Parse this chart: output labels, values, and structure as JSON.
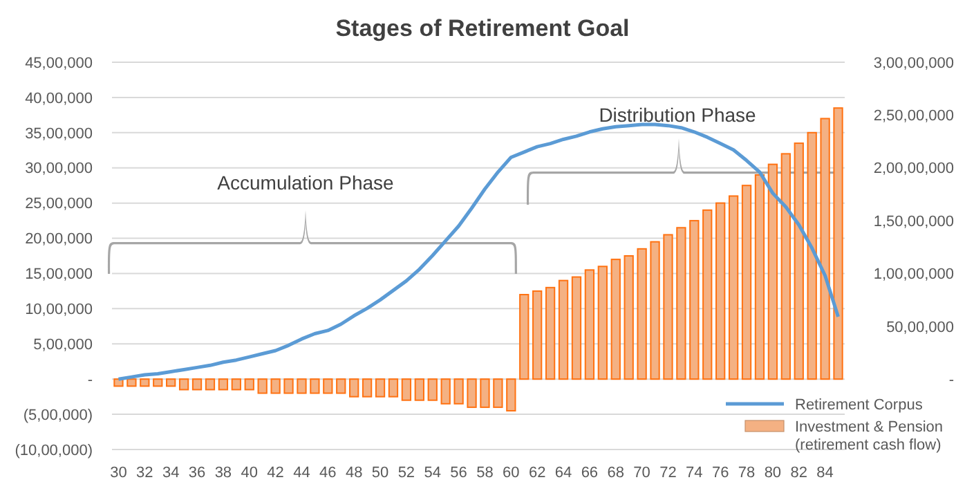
{
  "chart_data": {
    "type": "bar",
    "title": "Stages of Retirement Goal",
    "categories": [
      "30",
      null,
      "32",
      null,
      "34",
      null,
      "36",
      null,
      "38",
      null,
      "40",
      null,
      "42",
      null,
      "44",
      null,
      "46",
      null,
      "48",
      null,
      "50",
      null,
      "52",
      null,
      "54",
      null,
      "56",
      null,
      "58",
      null,
      "60",
      null,
      "62",
      null,
      "64",
      null,
      "66",
      null,
      "68",
      null,
      "70",
      null,
      "72",
      null,
      "74",
      null,
      "76",
      null,
      "78",
      null,
      "80",
      null,
      "82",
      null,
      "84",
      null
    ],
    "series": [
      {
        "name": "Retirement Corpus",
        "type": "line",
        "axis": "y2",
        "color": "#5b9bd5",
        "values": [
          0,
          200000,
          400000,
          500000,
          700000,
          900000,
          1100000,
          1300000,
          1600000,
          1800000,
          2100000,
          2400000,
          2700000,
          3200000,
          3800000,
          4300000,
          4600000,
          5200000,
          6000000,
          6700000,
          7500000,
          8400000,
          9300000,
          10400000,
          11700000,
          13100000,
          14500000,
          16200000,
          18000000,
          19600000,
          21000000,
          21500000,
          22000000,
          22300000,
          22700000,
          23000000,
          23400000,
          23700000,
          23900000,
          24000000,
          24100000,
          24100000,
          24000000,
          23800000,
          23400000,
          22900000,
          22300000,
          21700000,
          20700000,
          19600000,
          17600000,
          16300000,
          14600000,
          12400000,
          9800000,
          5900000
        ]
      },
      {
        "name": "Investment & Pension (retirement cash flow)",
        "color": "#f4b183",
        "values": [
          -100000,
          -100000,
          -100000,
          -100000,
          -100000,
          -150000,
          -150000,
          -150000,
          -150000,
          -150000,
          -150000,
          -200000,
          -200000,
          -200000,
          -200000,
          -200000,
          -200000,
          -200000,
          -250000,
          -250000,
          -250000,
          -250000,
          -300000,
          -300000,
          -300000,
          -350000,
          -350000,
          -400000,
          -400000,
          -400000,
          -450000,
          1200000,
          1250000,
          1300000,
          1400000,
          1450000,
          1550000,
          1600000,
          1700000,
          1750000,
          1850000,
          1950000,
          2050000,
          2150000,
          2250000,
          2400000,
          2500000,
          2600000,
          2750000,
          2900000,
          3050000,
          3200000,
          3350000,
          3500000,
          3700000,
          3850000
        ]
      }
    ],
    "ylim": [
      -1000000,
      4500000
    ],
    "yticks": [
      {
        "value": -1000000,
        "label": "(10,00,000)"
      },
      {
        "value": -500000,
        "label": "(5,00,000)"
      },
      {
        "value": 0,
        "label": "-"
      },
      {
        "value": 500000,
        "label": "5,00,000"
      },
      {
        "value": 1000000,
        "label": "10,00,000"
      },
      {
        "value": 1500000,
        "label": "15,00,000"
      },
      {
        "value": 2000000,
        "label": "20,00,000"
      },
      {
        "value": 2500000,
        "label": "25,00,000"
      },
      {
        "value": 3000000,
        "label": "30,00,000"
      },
      {
        "value": 3500000,
        "label": "35,00,000"
      },
      {
        "value": 4000000,
        "label": "40,00,000"
      },
      {
        "value": 4500000,
        "label": "45,00,000"
      }
    ],
    "y2lim": [
      -6666667,
      30000000
    ],
    "y2ticks": [
      {
        "value": 0,
        "label": "-"
      },
      {
        "value": 5000000,
        "label": "50,00,000"
      },
      {
        "value": 10000000,
        "label": "1,00,00,000"
      },
      {
        "value": 15000000,
        "label": "1,50,00,000"
      },
      {
        "value": 20000000,
        "label": "2,00,00,000"
      },
      {
        "value": 25000000,
        "label": "2,50,00,000"
      },
      {
        "value": 30000000,
        "label": "3,00,00,000"
      }
    ],
    "grid": "y",
    "legend": "bottom right",
    "annotations": [
      "Accumulation Phase",
      "Distribution Phase"
    ]
  }
}
